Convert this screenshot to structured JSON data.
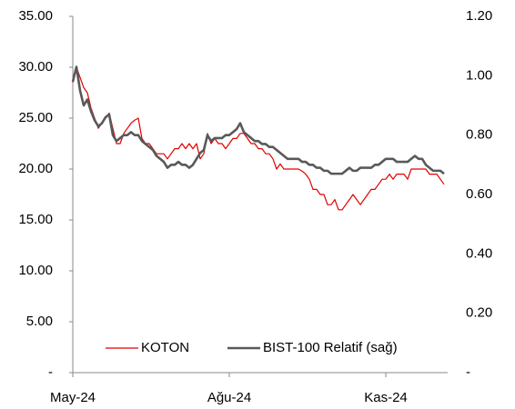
{
  "chart_data": {
    "type": "line",
    "categories": [
      "May-24",
      null,
      null,
      null,
      null,
      null,
      null,
      null,
      null,
      null,
      null,
      null,
      null,
      null,
      null,
      null,
      null,
      null,
      null,
      null,
      null,
      null,
      null,
      null,
      null,
      null,
      null,
      null,
      null,
      null,
      null,
      null,
      null,
      null,
      null,
      null,
      null,
      null,
      null,
      null,
      null,
      null,
      null,
      "Ağu-24",
      null,
      null,
      null,
      null,
      null,
      null,
      null,
      null,
      null,
      null,
      null,
      null,
      null,
      null,
      null,
      null,
      null,
      null,
      null,
      null,
      null,
      null,
      null,
      null,
      null,
      null,
      null,
      null,
      null,
      null,
      null,
      null,
      null,
      null,
      null,
      null,
      null,
      null,
      null,
      null,
      null,
      null,
      "Kas-24",
      null,
      null,
      null,
      null,
      null,
      null,
      null,
      null,
      null,
      null,
      null,
      null,
      null,
      null,
      null,
      null
    ],
    "series": [
      {
        "name": "KOTON",
        "color": "#e00000",
        "values": [
          28.5,
          30,
          29,
          28,
          27.5,
          26,
          25,
          24,
          24.5,
          25,
          25.5,
          24,
          22.5,
          22.5,
          23.5,
          24,
          24.5,
          24.8,
          25,
          23,
          22.5,
          22.5,
          22,
          21.5,
          21.5,
          21.5,
          21,
          21.5,
          22,
          22,
          22.5,
          22,
          22.5,
          22,
          22.5,
          21,
          21.5,
          23.5,
          22.5,
          23,
          22.5,
          22.5,
          22,
          22.5,
          23,
          23,
          23.5,
          23.5,
          23,
          22.5,
          22.5,
          22,
          22,
          21.5,
          21.5,
          21,
          20,
          20.5,
          20,
          20,
          20,
          20,
          20,
          19.8,
          19.5,
          19,
          18,
          18,
          17.5,
          17.5,
          16.5,
          16.5,
          17,
          16,
          16,
          16.5,
          17,
          17.5,
          17,
          16.5,
          17,
          17.5,
          18,
          18,
          18.5,
          19,
          19,
          19.5,
          19,
          19.5,
          19.5,
          19.5,
          19,
          20,
          20,
          20,
          20,
          20,
          19.5,
          19.5,
          19.5,
          19,
          18.5
        ]
      },
      {
        "name": "BIST-100 Relatif (sağ)",
        "color": "#595959",
        "axis": "y2",
        "values": [
          0.98,
          1.03,
          0.95,
          0.9,
          0.92,
          0.88,
          0.85,
          0.83,
          0.84,
          0.86,
          0.87,
          0.8,
          0.78,
          0.79,
          0.8,
          0.8,
          0.81,
          0.8,
          0.8,
          0.78,
          0.77,
          0.76,
          0.75,
          0.73,
          0.72,
          0.71,
          0.69,
          0.7,
          0.7,
          0.71,
          0.7,
          0.7,
          0.69,
          0.7,
          0.72,
          0.74,
          0.75,
          0.8,
          0.78,
          0.79,
          0.79,
          0.79,
          0.8,
          0.8,
          0.81,
          0.82,
          0.84,
          0.81,
          0.8,
          0.79,
          0.78,
          0.78,
          0.77,
          0.77,
          0.76,
          0.76,
          0.75,
          0.74,
          0.73,
          0.72,
          0.72,
          0.72,
          0.72,
          0.71,
          0.71,
          0.7,
          0.7,
          0.69,
          0.69,
          0.68,
          0.68,
          0.67,
          0.67,
          0.67,
          0.67,
          0.68,
          0.69,
          0.68,
          0.68,
          0.69,
          0.69,
          0.69,
          0.69,
          0.7,
          0.7,
          0.71,
          0.72,
          0.72,
          0.72,
          0.71,
          0.71,
          0.71,
          0.71,
          0.72,
          0.73,
          0.72,
          0.72,
          0.7,
          0.69,
          0.68,
          0.68,
          0.68,
          0.67
        ]
      }
    ],
    "ylim": [
      0,
      35
    ],
    "yticks": [
      {
        "value": 0,
        "label": "-"
      },
      {
        "value": 5,
        "label": "5.00"
      },
      {
        "value": 10,
        "label": "10.00"
      },
      {
        "value": 15,
        "label": "15.00"
      },
      {
        "value": 20,
        "label": "20.00"
      },
      {
        "value": 25,
        "label": "25.00"
      },
      {
        "value": 30,
        "label": "30.00"
      },
      {
        "value": 35,
        "label": "35.00"
      }
    ],
    "y2lim": [
      0,
      1.2
    ],
    "y2ticks": [
      {
        "value": 0,
        "label": "-"
      },
      {
        "value": 0.2,
        "label": "0.20"
      },
      {
        "value": 0.4,
        "label": "0.40"
      },
      {
        "value": 0.6,
        "label": "0.60"
      },
      {
        "value": 0.8,
        "label": "0.80"
      },
      {
        "value": 1,
        "label": "1.00"
      },
      {
        "value": 1.2,
        "label": "1.20"
      }
    ],
    "grid": false,
    "legend": "lower center"
  }
}
